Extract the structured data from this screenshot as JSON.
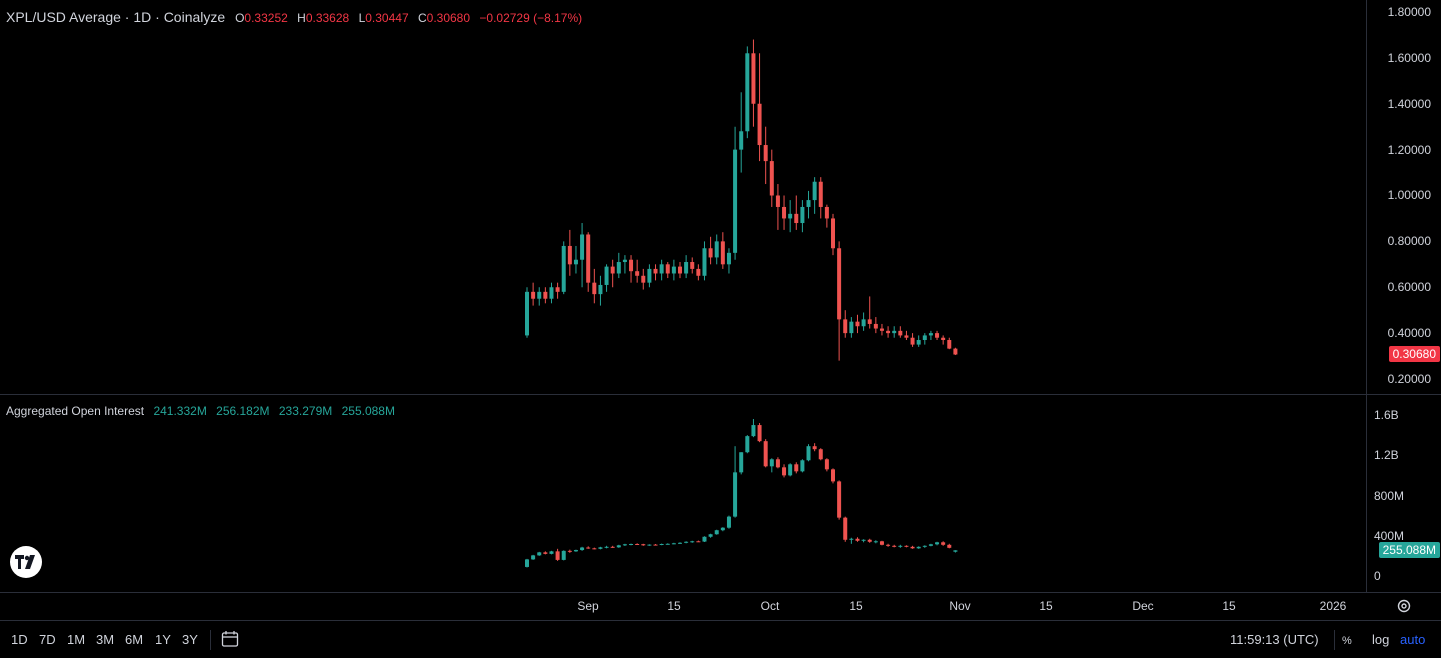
{
  "header": {
    "title": "XPL/USD Average · 1D · Coinalyze",
    "o_label": "O",
    "o_value": "0.33252",
    "h_label": "H",
    "h_value": "0.33628",
    "l_label": "L",
    "l_value": "0.30447",
    "c_label": "C",
    "c_value": "0.30680",
    "change": "−0.02729 (−8.17%)"
  },
  "oi_legend": {
    "title": "Aggregated Open Interest",
    "values": [
      "241.332M",
      "256.182M",
      "233.279M",
      "255.088M"
    ]
  },
  "price_axis": [
    "1.80000",
    "1.60000",
    "1.40000",
    "1.20000",
    "1.00000",
    "0.80000",
    "0.60000",
    "0.40000",
    "0.20000"
  ],
  "price_badge": "0.30680",
  "oi_axis": [
    "1.6B",
    "1.2B",
    "800M",
    "400M",
    "0"
  ],
  "oi_badge": "255.088M",
  "time_axis": [
    "Sep",
    "15",
    "Oct",
    "15",
    "Nov",
    "15",
    "Dec",
    "15",
    "2026"
  ],
  "timeframes": [
    "1D",
    "7D",
    "1M",
    "3M",
    "6M",
    "1Y",
    "3Y"
  ],
  "clock": "11:59:13 (UTC)",
  "scale_options": [
    "log",
    "auto"
  ],
  "colors": {
    "up": "#26a69a",
    "down": "#ef5350",
    "background": "#000000",
    "badge_down": "#f23645"
  },
  "icons": [
    "tradingview-logo-icon",
    "calendar-icon",
    "settings-icon",
    "percent-icon"
  ],
  "chart_data": [
    {
      "type": "candlestick",
      "title": "XPL/USD Average · 1D · Coinalyze",
      "x_start": "2025-08-25",
      "ylim": [
        0.2,
        1.8
      ],
      "series": [
        {
          "name": "XPL/USD Average",
          "ohlc": [
            [
              0.39,
              0.6,
              0.38,
              0.58
            ],
            [
              0.58,
              0.62,
              0.52,
              0.55
            ],
            [
              0.55,
              0.6,
              0.52,
              0.58
            ],
            [
              0.58,
              0.6,
              0.53,
              0.55
            ],
            [
              0.55,
              0.62,
              0.53,
              0.6
            ],
            [
              0.6,
              0.62,
              0.55,
              0.58
            ],
            [
              0.58,
              0.8,
              0.57,
              0.78
            ],
            [
              0.78,
              0.85,
              0.65,
              0.7
            ],
            [
              0.7,
              0.78,
              0.66,
              0.72
            ],
            [
              0.72,
              0.88,
              0.6,
              0.83
            ],
            [
              0.83,
              0.84,
              0.58,
              0.62
            ],
            [
              0.62,
              0.68,
              0.53,
              0.57
            ],
            [
              0.57,
              0.65,
              0.52,
              0.61
            ],
            [
              0.61,
              0.7,
              0.58,
              0.69
            ],
            [
              0.69,
              0.72,
              0.6,
              0.66
            ],
            [
              0.66,
              0.75,
              0.64,
              0.71
            ],
            [
              0.71,
              0.74,
              0.66,
              0.72
            ],
            [
              0.72,
              0.74,
              0.62,
              0.67
            ],
            [
              0.67,
              0.72,
              0.62,
              0.65
            ],
            [
              0.65,
              0.68,
              0.59,
              0.62
            ],
            [
              0.62,
              0.7,
              0.6,
              0.68
            ],
            [
              0.68,
              0.7,
              0.63,
              0.66
            ],
            [
              0.66,
              0.72,
              0.63,
              0.7
            ],
            [
              0.7,
              0.71,
              0.64,
              0.66
            ],
            [
              0.66,
              0.72,
              0.63,
              0.69
            ],
            [
              0.69,
              0.71,
              0.64,
              0.66
            ],
            [
              0.66,
              0.74,
              0.64,
              0.71
            ],
            [
              0.71,
              0.73,
              0.66,
              0.68
            ],
            [
              0.68,
              0.7,
              0.63,
              0.65
            ],
            [
              0.65,
              0.8,
              0.63,
              0.77
            ],
            [
              0.77,
              0.82,
              0.7,
              0.73
            ],
            [
              0.73,
              0.83,
              0.7,
              0.8
            ],
            [
              0.8,
              0.84,
              0.68,
              0.7
            ],
            [
              0.7,
              0.77,
              0.66,
              0.75
            ],
            [
              0.75,
              1.3,
              0.72,
              1.2
            ],
            [
              1.2,
              1.45,
              1.1,
              1.28
            ],
            [
              1.28,
              1.65,
              1.25,
              1.62
            ],
            [
              1.62,
              1.68,
              1.3,
              1.4
            ],
            [
              1.4,
              1.62,
              1.15,
              1.22
            ],
            [
              1.22,
              1.3,
              1.05,
              1.15
            ],
            [
              1.15,
              1.2,
              0.95,
              1.0
            ],
            [
              1.0,
              1.05,
              0.85,
              0.95
            ],
            [
              0.95,
              1.0,
              0.85,
              0.9
            ],
            [
              0.9,
              0.98,
              0.84,
              0.92
            ],
            [
              0.92,
              1.0,
              0.85,
              0.88
            ],
            [
              0.88,
              0.98,
              0.84,
              0.95
            ],
            [
              0.95,
              1.02,
              0.9,
              0.98
            ],
            [
              0.98,
              1.08,
              0.92,
              1.06
            ],
            [
              1.06,
              1.08,
              0.9,
              0.95
            ],
            [
              0.95,
              0.96,
              0.86,
              0.9
            ],
            [
              0.9,
              0.92,
              0.74,
              0.77
            ],
            [
              0.77,
              0.8,
              0.28,
              0.46
            ],
            [
              0.46,
              0.5,
              0.38,
              0.4
            ],
            [
              0.4,
              0.47,
              0.38,
              0.45
            ],
            [
              0.45,
              0.48,
              0.4,
              0.43
            ],
            [
              0.43,
              0.49,
              0.41,
              0.46
            ],
            [
              0.46,
              0.56,
              0.42,
              0.44
            ],
            [
              0.44,
              0.47,
              0.4,
              0.42
            ],
            [
              0.42,
              0.44,
              0.39,
              0.41
            ],
            [
              0.41,
              0.43,
              0.38,
              0.4
            ],
            [
              0.4,
              0.43,
              0.38,
              0.41
            ],
            [
              0.41,
              0.43,
              0.38,
              0.39
            ],
            [
              0.39,
              0.41,
              0.37,
              0.38
            ],
            [
              0.38,
              0.4,
              0.34,
              0.35
            ],
            [
              0.35,
              0.39,
              0.34,
              0.37
            ],
            [
              0.37,
              0.4,
              0.35,
              0.39
            ],
            [
              0.39,
              0.41,
              0.37,
              0.4
            ],
            [
              0.4,
              0.41,
              0.37,
              0.38
            ],
            [
              0.38,
              0.39,
              0.35,
              0.37
            ],
            [
              0.37,
              0.38,
              0.33,
              0.3325
            ],
            [
              0.33252,
              0.33628,
              0.30447,
              0.3068
            ]
          ]
        }
      ]
    },
    {
      "type": "candlestick",
      "title": "Aggregated Open Interest",
      "x_start": "2025-08-25",
      "ylim": [
        0,
        1600000000
      ],
      "series": [
        {
          "name": "Aggregated Open Interest",
          "ohlc_millions": [
            [
              90,
              170,
              85,
              165
            ],
            [
              165,
              210,
              160,
              205
            ],
            [
              205,
              240,
              200,
              235
            ],
            [
              235,
              245,
              215,
              220
            ],
            [
              220,
              250,
              215,
              245
            ],
            [
              245,
              270,
              150,
              160
            ],
            [
              160,
              255,
              155,
              250
            ],
            [
              250,
              262,
              230,
              245
            ],
            [
              245,
              262,
              240,
              258
            ],
            [
              258,
              290,
              250,
              283
            ],
            [
              283,
              295,
              270,
              275
            ],
            [
              275,
              282,
              265,
              270
            ],
            [
              270,
              290,
              265,
              285
            ],
            [
              285,
              300,
              275,
              290
            ],
            [
              290,
              300,
              280,
              285
            ],
            [
              285,
              310,
              280,
              305
            ],
            [
              305,
              320,
              298,
              315
            ],
            [
              315,
              322,
              305,
              318
            ],
            [
              318,
              325,
              312,
              316
            ],
            [
              316,
              320,
              300,
              305
            ],
            [
              305,
              315,
              300,
              312
            ],
            [
              312,
              318,
              305,
              310
            ],
            [
              310,
              322,
              306,
              318
            ],
            [
              318,
              325,
              312,
              320
            ],
            [
              320,
              330,
              315,
              325
            ],
            [
              325,
              335,
              318,
              330
            ],
            [
              330,
              345,
              325,
              340
            ],
            [
              340,
              350,
              330,
              345
            ],
            [
              345,
              352,
              338,
              342
            ],
            [
              342,
              395,
              338,
              390
            ],
            [
              390,
              420,
              380,
              415
            ],
            [
              415,
              460,
              410,
              455
            ],
            [
              455,
              485,
              445,
              480
            ],
            [
              480,
              600,
              470,
              590
            ],
            [
              590,
              1290,
              580,
              1030
            ],
            [
              1030,
              1230,
              1010,
              1230
            ],
            [
              1230,
              1400,
              1220,
              1390
            ],
            [
              1390,
              1560,
              1380,
              1500
            ],
            [
              1500,
              1520,
              1330,
              1340
            ],
            [
              1340,
              1360,
              1080,
              1090
            ],
            [
              1090,
              1170,
              1030,
              1160
            ],
            [
              1160,
              1180,
              1070,
              1080
            ],
            [
              1080,
              1110,
              980,
              1000
            ],
            [
              1000,
              1120,
              990,
              1110
            ],
            [
              1110,
              1130,
              1020,
              1040
            ],
            [
              1040,
              1160,
              1030,
              1150
            ],
            [
              1150,
              1310,
              1140,
              1290
            ],
            [
              1290,
              1320,
              1240,
              1260
            ],
            [
              1260,
              1270,
              1150,
              1160
            ],
            [
              1160,
              1170,
              1040,
              1060
            ],
            [
              1060,
              1070,
              920,
              940
            ],
            [
              940,
              950,
              560,
              580
            ],
            [
              580,
              590,
              340,
              360
            ],
            [
              360,
              380,
              320,
              370
            ],
            [
              370,
              385,
              340,
              350
            ],
            [
              350,
              365,
              335,
              360
            ],
            [
              360,
              370,
              330,
              340
            ],
            [
              340,
              355,
              325,
              345
            ],
            [
              345,
              350,
              305,
              310
            ],
            [
              310,
              320,
              290,
              300
            ],
            [
              300,
              310,
              285,
              295
            ],
            [
              295,
              310,
              280,
              300
            ],
            [
              300,
              305,
              285,
              290
            ],
            [
              290,
              300,
              270,
              275
            ],
            [
              275,
              295,
              270,
              290
            ],
            [
              290,
              305,
              280,
              300
            ],
            [
              300,
              320,
              295,
              315
            ],
            [
              315,
              340,
              305,
              335
            ],
            [
              335,
              345,
              300,
              310
            ],
            [
              310,
              320,
              275,
              280
            ],
            [
              241.332,
              256.182,
              233.279,
              255.088
            ]
          ]
        }
      ]
    }
  ]
}
